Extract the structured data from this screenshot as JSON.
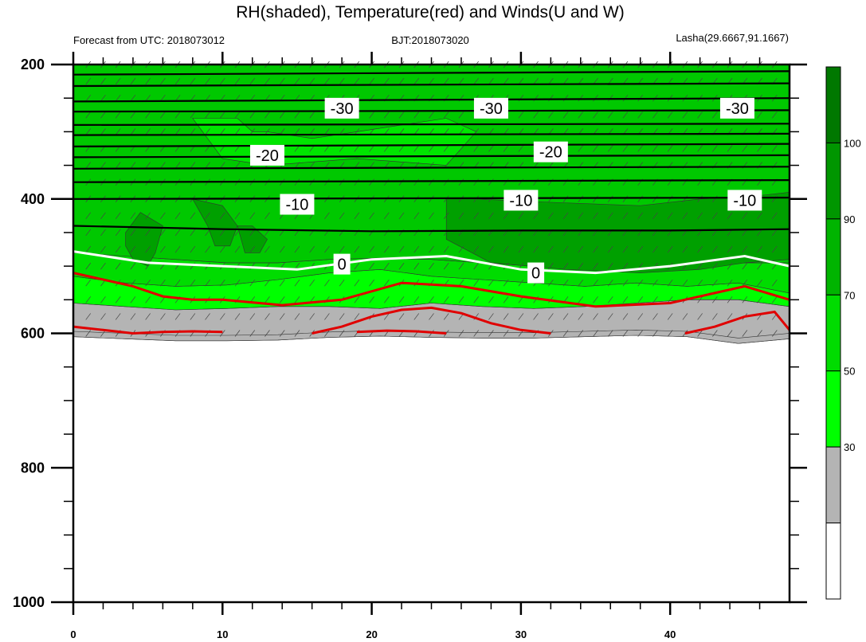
{
  "chart_data": {
    "type": "heatmap",
    "title": "RH(shaded), Temperature(red) and Winds(U and W)",
    "left_subtitle": "Forecast from UTC: 2018073012",
    "center_subtitle": "BJT:2018073020",
    "right_subtitle": "Lasha(29.6667,91.1667)",
    "xlim": [
      0,
      48
    ],
    "ylim": [
      1000,
      200
    ],
    "x_ticks": [
      0,
      10,
      20,
      30,
      40
    ],
    "x_tick_labels": [
      "0",
      "10",
      "20",
      "30",
      "40"
    ],
    "y_ticks": [
      200,
      400,
      600,
      800,
      1000
    ],
    "y_tick_labels": [
      "200",
      "400",
      "600",
      "800",
      "1000"
    ],
    "colorbar": {
      "levels": [
        30,
        50,
        70,
        90,
        100
      ],
      "level_labels": [
        "30",
        "50",
        "70",
        "90",
        "100"
      ],
      "colors": [
        "#ffffff",
        "#b4b4b4",
        "#00ff00",
        "#00dc00",
        "#00b400",
        "#009600",
        "#007800"
      ]
    },
    "surface_pressure": [
      605,
      608,
      611,
      611,
      610,
      606,
      604,
      606,
      607,
      607,
      605,
      603,
      605,
      615,
      608
    ],
    "rh_bands": [
      {
        "label": "30-50",
        "color": "#b4b4b4",
        "top": [
          555,
          560,
          565,
          563,
          560,
          560,
          563,
          555,
          560,
          563,
          560,
          555,
          550,
          550,
          560
        ]
      },
      {
        "label": "50-70",
        "color": "#00ff00",
        "top": [
          515,
          525,
          530,
          528,
          520,
          510,
          505,
          515,
          520,
          525,
          530,
          525,
          530,
          525,
          540
        ]
      },
      {
        "label": "70-90",
        "color": "#00dc00",
        "top": [
          480,
          485,
          490,
          495,
          495,
          490,
          488,
          490,
          495,
          500,
          495,
          492,
          490,
          495,
          495
        ]
      },
      {
        "label": "90-100",
        "color": "#00c800",
        "top": [
          200,
          200,
          200,
          200,
          200,
          200,
          200,
          200,
          200,
          200,
          200,
          200,
          200,
          200,
          200
        ]
      }
    ],
    "rh_patches_dark": [
      {
        "x": [
          25,
          25,
          28,
          33,
          38,
          42,
          45,
          48,
          48,
          46,
          42,
          38,
          32,
          27
        ],
        "p": [
          400,
          460,
          495,
          505,
          510,
          505,
          495,
          490,
          390,
          395,
          400,
          410,
          405,
          400
        ]
      },
      {
        "x": [
          3.5,
          4.5,
          6,
          5.5,
          5,
          4,
          3.5
        ],
        "p": [
          450,
          420,
          440,
          480,
          500,
          490,
          470
        ]
      },
      {
        "x": [
          8,
          10,
          11,
          10.5,
          9.5,
          9
        ],
        "p": [
          400,
          410,
          440,
          470,
          470,
          440
        ]
      },
      {
        "x": [
          11,
          12,
          13,
          12.5,
          11.5
        ],
        "p": [
          440,
          440,
          460,
          480,
          480
        ]
      }
    ],
    "rh_patches_light": [
      {
        "x": [
          8,
          11,
          12,
          13,
          16,
          19,
          22,
          25,
          27,
          25,
          22,
          19,
          16,
          13,
          10
        ],
        "p": [
          280,
          280,
          300,
          300,
          310,
          300,
          290,
          280,
          300,
          350,
          345,
          340,
          345,
          350,
          340
        ]
      }
    ],
    "temperature_contours": [
      {
        "label": "-30",
        "x": [
          0,
          48
        ],
        "p": [
          250,
          250
        ]
      },
      {
        "label": "-20",
        "x": [
          0,
          48
        ],
        "p": [
          320,
          320
        ]
      },
      {
        "label": "-10",
        "x": [
          0,
          48
        ],
        "p": [
          400,
          400
        ]
      }
    ],
    "zero_line": {
      "label": "0",
      "x": [
        0,
        5,
        10,
        15,
        20,
        25,
        30,
        35,
        40,
        45,
        48
      ],
      "p": [
        478,
        495,
        500,
        505,
        490,
        485,
        505,
        510,
        500,
        485,
        500
      ]
    },
    "black_isotherms": [
      {
        "x": [
          0,
          48
        ],
        "p": [
          215,
          210
        ]
      },
      {
        "x": [
          0,
          48
        ],
        "p": [
          232,
          228
        ]
      },
      {
        "x": [
          0,
          48
        ],
        "p": [
          255,
          250
        ]
      },
      {
        "x": [
          0,
          48
        ],
        "p": [
          270,
          268
        ]
      },
      {
        "x": [
          0,
          48
        ],
        "p": [
          290,
          288
        ]
      },
      {
        "x": [
          0,
          48
        ],
        "p": [
          305,
          303
        ]
      },
      {
        "x": [
          0,
          48
        ],
        "p": [
          322,
          318
        ]
      },
      {
        "x": [
          0,
          48
        ],
        "p": [
          338,
          335
        ]
      },
      {
        "x": [
          0,
          48
        ],
        "p": [
          355,
          352
        ]
      },
      {
        "x": [
          0,
          48
        ],
        "p": [
          375,
          372
        ]
      },
      {
        "x": [
          0,
          48
        ],
        "p": [
          400,
          398
        ]
      },
      {
        "x": [
          0,
          10,
          20,
          30,
          40,
          48
        ],
        "p": [
          440,
          445,
          448,
          447,
          447,
          445
        ]
      }
    ],
    "red_isotherms": [
      {
        "x": [
          0,
          2,
          4,
          6,
          8,
          10,
          14,
          18,
          22,
          26,
          30,
          35,
          40,
          45,
          48
        ],
        "p": [
          510,
          520,
          530,
          545,
          550,
          550,
          558,
          550,
          525,
          530,
          545,
          560,
          555,
          530,
          550
        ]
      },
      {
        "x": [
          0,
          2,
          4,
          6,
          8,
          10
        ],
        "p": [
          590,
          595,
          600,
          598,
          597,
          598
        ]
      },
      {
        "x": [
          16,
          18,
          20,
          22,
          24,
          26,
          28,
          30,
          32
        ],
        "p": [
          600,
          590,
          575,
          565,
          562,
          570,
          585,
          595,
          600
        ]
      },
      {
        "x": [
          19,
          21,
          23,
          25
        ],
        "p": [
          598,
          596,
          597,
          600
        ]
      },
      {
        "x": [
          41,
          43,
          45,
          47,
          48
        ],
        "p": [
          600,
          590,
          575,
          568,
          595
        ]
      }
    ],
    "contour_labels": [
      {
        "text": "-30",
        "x": 18,
        "p": 265
      },
      {
        "text": "-30",
        "x": 28,
        "p": 265
      },
      {
        "text": "-30",
        "x": 44.5,
        "p": 265
      },
      {
        "text": "-20",
        "x": 13,
        "p": 335
      },
      {
        "text": "-20",
        "x": 32,
        "p": 330
      },
      {
        "text": "-10",
        "x": 15,
        "p": 408
      },
      {
        "text": "-10",
        "x": 30,
        "p": 402
      },
      {
        "text": "-10",
        "x": 45,
        "p": 402
      },
      {
        "text": "0",
        "x": 18,
        "p": 497
      },
      {
        "text": "0",
        "x": 31,
        "p": 510
      }
    ],
    "wind_barb_levels": [
      200,
      225,
      250,
      275,
      300,
      325,
      350,
      375,
      400,
      425,
      450,
      475,
      500,
      525,
      550,
      575,
      600
    ]
  }
}
